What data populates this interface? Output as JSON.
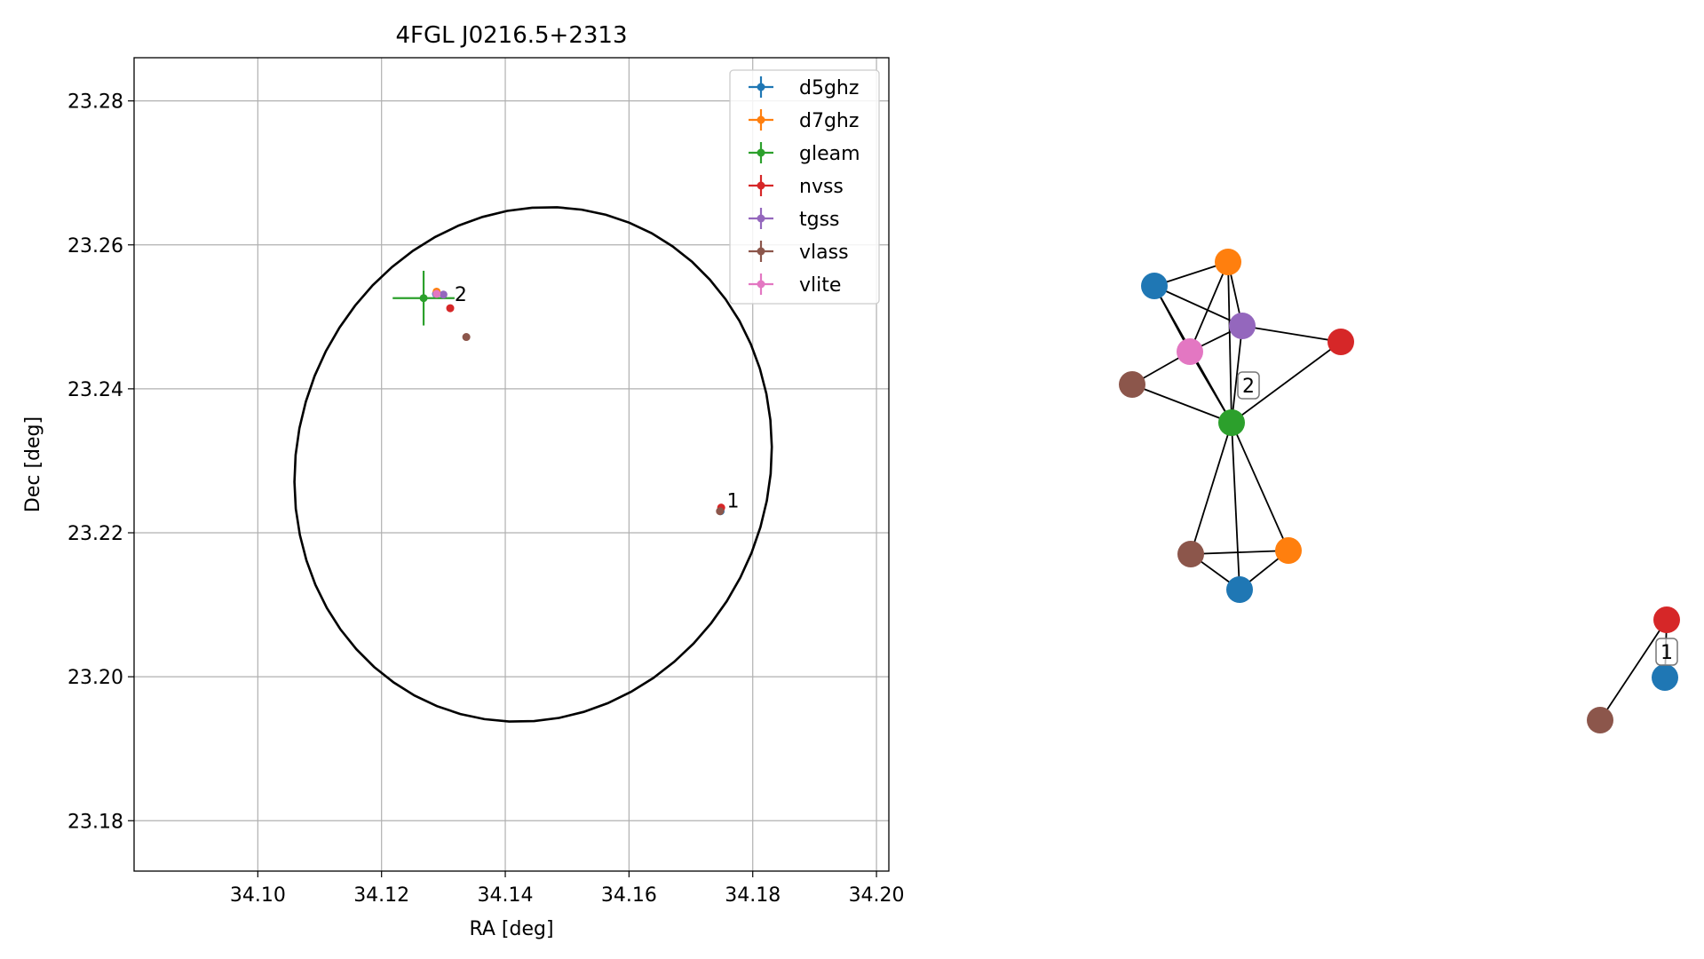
{
  "chart_data": [
    {
      "type": "scatter",
      "title": "4FGL J0216.5+2313",
      "xlabel": "RA [deg]",
      "ylabel": "Dec [deg]",
      "xlim": [
        34.08,
        34.202
      ],
      "ylim": [
        23.173,
        23.286
      ],
      "xticks": [
        34.1,
        34.12,
        34.14,
        34.16,
        34.18,
        34.2
      ],
      "xtick_labels": [
        "34.10",
        "34.12",
        "34.14",
        "34.16",
        "34.18",
        "34.20"
      ],
      "yticks": [
        23.18,
        23.2,
        23.22,
        23.24,
        23.26,
        23.28
      ],
      "ytick_labels": [
        "23.18",
        "23.20",
        "23.22",
        "23.24",
        "23.26",
        "23.28"
      ],
      "grid": true,
      "legend_position": "upper-right",
      "ellipse": {
        "center": [
          34.1445,
          23.2295
        ],
        "semi_x": 0.039,
        "semi_y": 0.0353,
        "angle_deg": 20,
        "color": "#000000"
      },
      "series": [
        {
          "name": "d5ghz",
          "color": "#1f77b4",
          "points": [
            {
              "x": 34.1288,
              "y": 23.2532,
              "xerr": 0.0002,
              "yerr": 0.0002
            },
            {
              "x": 34.1748,
              "y": 23.223,
              "xerr": 0.0002,
              "yerr": 0.0002
            }
          ]
        },
        {
          "name": "d7ghz",
          "color": "#ff7f0e",
          "points": [
            {
              "x": 34.1289,
              "y": 23.2535,
              "xerr": 0.0002,
              "yerr": 0.0002
            }
          ]
        },
        {
          "name": "gleam",
          "color": "#2ca02c",
          "points": [
            {
              "x": 34.1268,
              "y": 23.2526,
              "xerr": 0.005,
              "yerr": 0.0038
            }
          ]
        },
        {
          "name": "nvss",
          "color": "#d62728",
          "points": [
            {
              "x": 34.1311,
              "y": 23.2512,
              "xerr": 0.0003,
              "yerr": 0.0003
            },
            {
              "x": 34.1749,
              "y": 23.2235,
              "xerr": 0.0003,
              "yerr": 0.0005
            }
          ]
        },
        {
          "name": "tgss",
          "color": "#9467bd",
          "points": [
            {
              "x": 34.13,
              "y": 23.2531,
              "xerr": 0.0003,
              "yerr": 0.0003
            }
          ]
        },
        {
          "name": "vlass",
          "color": "#8c564b",
          "points": [
            {
              "x": 34.1337,
              "y": 23.2472,
              "xerr": 0.0001,
              "yerr": 0.0001
            },
            {
              "x": 34.1747,
              "y": 23.223,
              "xerr": 0.0001,
              "yerr": 0.0001
            }
          ]
        },
        {
          "name": "vlite",
          "color": "#e377c2",
          "points": [
            {
              "x": 34.1289,
              "y": 23.2532,
              "xerr": 0.0002,
              "yerr": 0.0002
            }
          ]
        }
      ],
      "annotations": [
        {
          "text": "2",
          "x": 34.1318,
          "y": 23.2532
        },
        {
          "text": "1",
          "x": 34.1758,
          "y": 23.2245
        }
      ]
    },
    {
      "type": "network",
      "title": "",
      "nodes": [
        {
          "id": "c2_d5ghz",
          "color": "#1f77b4"
        },
        {
          "id": "c2_d7ghz",
          "color": "#ff7f0e"
        },
        {
          "id": "c2_tgss",
          "color": "#9467bd"
        },
        {
          "id": "c2_nvss",
          "color": "#d62728"
        },
        {
          "id": "c2_vlite",
          "color": "#e377c2"
        },
        {
          "id": "c2_vlass",
          "color": "#8c564b"
        },
        {
          "id": "c2_gleam",
          "color": "#2ca02c"
        },
        {
          "id": "c2_vlass_b",
          "color": "#8c564b"
        },
        {
          "id": "c2_d7ghz_b",
          "color": "#ff7f0e"
        },
        {
          "id": "c2_d5ghz_b",
          "color": "#1f77b4"
        },
        {
          "id": "c1_nvss",
          "color": "#d62728"
        },
        {
          "id": "c1_d5ghz",
          "color": "#1f77b4"
        },
        {
          "id": "c1_vlass",
          "color": "#8c564b"
        }
      ],
      "edges": [
        [
          "c2_d5ghz",
          "c2_d7ghz"
        ],
        [
          "c2_d5ghz",
          "c2_tgss"
        ],
        [
          "c2_d5ghz",
          "c2_vlite"
        ],
        [
          "c2_d5ghz",
          "c2_gleam"
        ],
        [
          "c2_d7ghz",
          "c2_tgss"
        ],
        [
          "c2_d7ghz",
          "c2_vlite"
        ],
        [
          "c2_d7ghz",
          "c2_gleam"
        ],
        [
          "c2_tgss",
          "c2_vlite"
        ],
        [
          "c2_tgss",
          "c2_nvss"
        ],
        [
          "c2_tgss",
          "c2_gleam"
        ],
        [
          "c2_vlite",
          "c2_vlass"
        ],
        [
          "c2_vlite",
          "c2_gleam"
        ],
        [
          "c2_vlass",
          "c2_gleam"
        ],
        [
          "c2_nvss",
          "c2_gleam"
        ],
        [
          "c2_gleam",
          "c2_vlass_b"
        ],
        [
          "c2_gleam",
          "c2_d5ghz_b"
        ],
        [
          "c2_gleam",
          "c2_d7ghz_b"
        ],
        [
          "c2_vlass_b",
          "c2_d7ghz_b"
        ],
        [
          "c2_vlass_b",
          "c2_d5ghz_b"
        ],
        [
          "c2_d7ghz_b",
          "c2_d5ghz_b"
        ],
        [
          "c1_nvss",
          "c1_d5ghz"
        ],
        [
          "c1_nvss",
          "c1_vlass"
        ]
      ],
      "cluster_labels": [
        "2",
        "1"
      ]
    }
  ]
}
